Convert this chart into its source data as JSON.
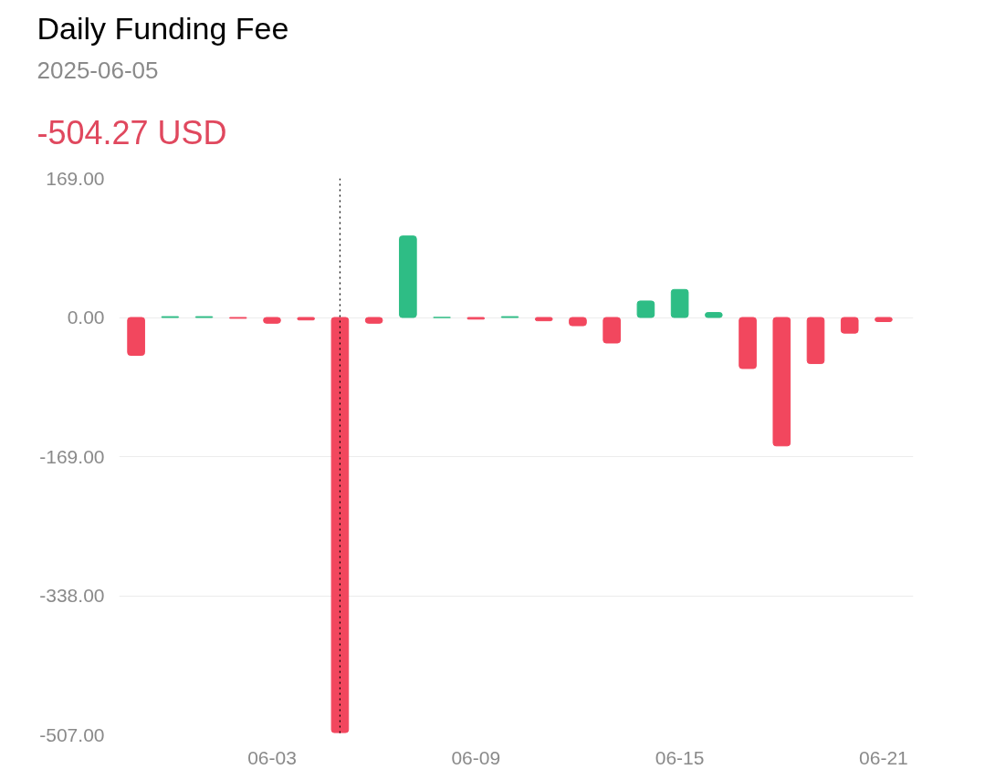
{
  "chart_data": {
    "type": "bar",
    "title": "Daily Funding Fee",
    "subtitle": "2025-06-05",
    "annotations": [
      "-504.27 USD"
    ],
    "x": [
      "2025-05-30",
      "2025-05-31",
      "2025-06-01",
      "2025-06-02",
      "2025-06-03",
      "2025-06-04",
      "2025-06-05",
      "2025-06-06",
      "2025-06-07",
      "2025-06-08",
      "2025-06-09",
      "2025-06-10",
      "2025-06-11",
      "2025-06-12",
      "2025-06-13",
      "2025-06-14",
      "2025-06-15",
      "2025-06-16",
      "2025-06-17",
      "2025-06-18",
      "2025-06-19",
      "2025-06-20",
      "2025-06-21"
    ],
    "values": [
      -46,
      1,
      1,
      -1,
      -7,
      -3,
      -504.27,
      -7,
      99,
      0,
      -2,
      1,
      -4,
      -10,
      -31,
      20,
      34,
      6,
      -62,
      -156,
      -56,
      -19,
      -5
    ],
    "colors": [
      "#f2475e",
      "#2ebd85",
      "#2ebd85",
      "#f2475e",
      "#f2475e",
      "#f2475e",
      "#f2475e",
      "#f2475e",
      "#2ebd85",
      "#2ebd85",
      "#f2475e",
      "#2ebd85",
      "#f2475e",
      "#f2475e",
      "#f2475e",
      "#2ebd85",
      "#2ebd85",
      "#2ebd85",
      "#f2475e",
      "#f2475e",
      "#f2475e",
      "#f2475e",
      "#f2475e"
    ],
    "xlim": [
      "2025-05-29T12:00",
      "2025-06-21T21:00"
    ],
    "xticks": [
      {
        "value": "2025-06-03",
        "label": "06-03"
      },
      {
        "value": "2025-06-09",
        "label": "06-09"
      },
      {
        "value": "2025-06-15",
        "label": "06-15"
      },
      {
        "value": "2025-06-21",
        "label": "06-21"
      }
    ],
    "ylim": [
      -507,
      169
    ],
    "yticks": [
      {
        "value": 169,
        "label": "169.00"
      },
      {
        "value": 0,
        "label": "0.00"
      },
      {
        "value": -169,
        "label": "-169.00"
      },
      {
        "value": -338,
        "label": "-338.00"
      },
      {
        "value": -507,
        "label": "-507.00"
      }
    ],
    "ref_lines": [
      {
        "axis": "x",
        "value": "2025-06-05",
        "color": "#000000",
        "line_style": "dotted"
      }
    ],
    "grid": "y"
  }
}
